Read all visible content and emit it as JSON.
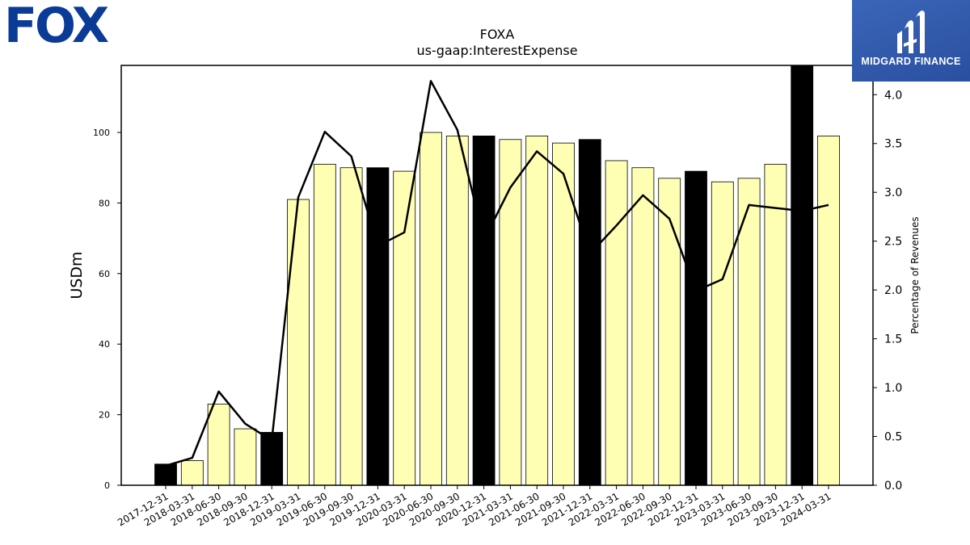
{
  "branding": {
    "company_logo_text": "FOX",
    "company_logo_color": "#0a3b97",
    "publisher_name": "MIDGARD FINANCE"
  },
  "chart_data": {
    "type": "bar",
    "title": "FOXA",
    "subtitle": "us-gaap:InterestExpense",
    "ylabel": "USDm",
    "y2label": "Percentage of Revenues",
    "categories": [
      "2017-12-31",
      "2018-03-31",
      "2018-06-30",
      "2018-09-30",
      "2018-12-31",
      "2019-03-31",
      "2019-06-30",
      "2019-09-30",
      "2019-12-31",
      "2020-03-31",
      "2020-06-30",
      "2020-09-30",
      "2020-12-31",
      "2021-03-31",
      "2021-06-30",
      "2021-09-30",
      "2021-12-31",
      "2022-03-31",
      "2022-06-30",
      "2022-09-30",
      "2022-12-31",
      "2023-03-31",
      "2023-06-30",
      "2023-09-30",
      "2023-12-31",
      "2024-03-31"
    ],
    "series": [
      {
        "type": "bar",
        "values": [
          6,
          7,
          23,
          16,
          15,
          81,
          91,
          90,
          90,
          89,
          100,
          99,
          99,
          98,
          99,
          97,
          98,
          92,
          90,
          87,
          89,
          86,
          87,
          91,
          119,
          99
        ],
        "highlight": [
          true,
          false,
          false,
          false,
          true,
          false,
          false,
          false,
          true,
          false,
          false,
          false,
          true,
          false,
          false,
          false,
          true,
          false,
          false,
          false,
          true,
          false,
          false,
          false,
          true,
          false
        ]
      },
      {
        "type": "line",
        "axis": "right",
        "values": [
          0.2,
          0.28,
          0.96,
          0.63,
          0.46,
          2.95,
          3.62,
          3.37,
          2.45,
          2.59,
          4.14,
          3.64,
          2.51,
          3.05,
          3.42,
          3.19,
          2.37,
          2.66,
          2.97,
          2.73,
          1.99,
          2.11,
          2.87,
          2.84,
          2.81,
          2.87
        ]
      }
    ],
    "ylim": [
      0,
      119
    ],
    "yticks": [
      0,
      20,
      40,
      60,
      80,
      100
    ],
    "y2lim": [
      0,
      4.3
    ],
    "y2ticks": [
      "0.0",
      "0.5",
      "1.0",
      "1.5",
      "2.0",
      "2.5",
      "3.0",
      "3.5",
      "4.0"
    ],
    "colors": {
      "bar": "#ffffb3",
      "highlight_bar": "#000000",
      "bar_edge": "#000000",
      "line": "#000000"
    },
    "grid": false,
    "legend": "none"
  }
}
